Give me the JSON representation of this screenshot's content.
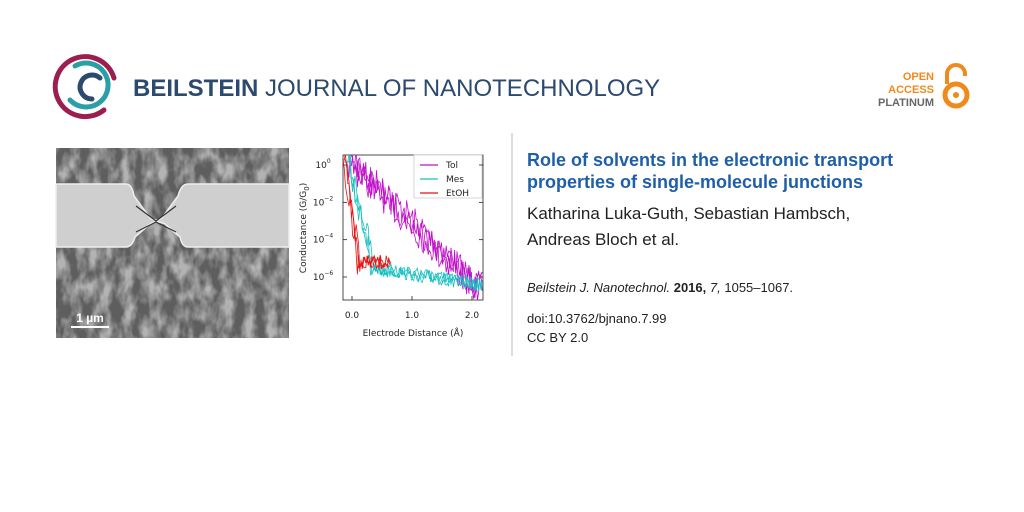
{
  "header": {
    "journal_bold": "BEILSTEIN",
    "journal_rest": "JOURNAL OF NANOTECHNOLOGY",
    "badge": [
      "OPEN",
      "ACCESS",
      "PLATINUM"
    ]
  },
  "figure": {
    "scale_bar": "1 µm",
    "plot": {
      "y_label": [
        "Conductance (G/G",
        "0",
        ")"
      ],
      "x_label": "Electrode Distance (Å)",
      "yticks": [
        {
          "base": "10",
          "exponent": "0"
        },
        {
          "base": "10",
          "exponent": "−2"
        },
        {
          "base": "10",
          "exponent": "−4"
        },
        {
          "base": "10",
          "exponent": "−6"
        }
      ],
      "xticks": [
        "0.0",
        "1.0",
        "2.0"
      ],
      "legend": [
        {
          "name": "Tol",
          "color": "#c010c8"
        },
        {
          "name": "Mes",
          "color": "#18c0c0"
        },
        {
          "name": "EtOH",
          "color": "#e81010"
        }
      ]
    }
  },
  "article": {
    "title": [
      "Role of solvents in the electronic transport",
      "properties of single-molecule junctions"
    ],
    "authors": [
      "Katharina Luka-Guth, Sebastian Hambsch,",
      "Andreas Bloch et al."
    ],
    "citation": {
      "journal": "Beilstein J. Nanotechnol.",
      "year": "2016,",
      "volume": "7,",
      "pages": "1055–1067."
    },
    "doi": "doi:10.3762/bjnano.7.99",
    "license": "CC BY 2.0"
  }
}
